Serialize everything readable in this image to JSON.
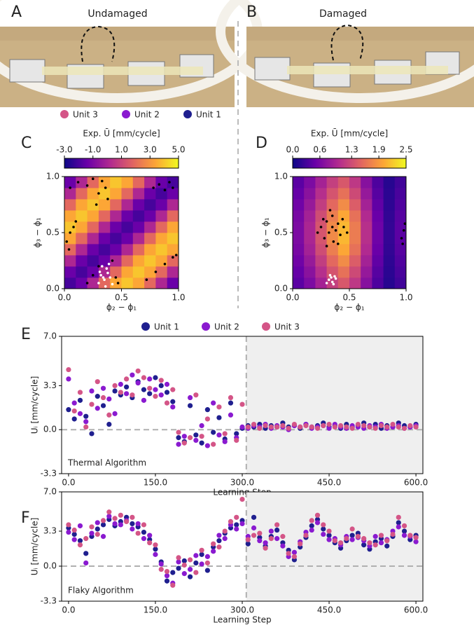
{
  "photos": [
    {
      "label": "A",
      "title": "Undamaged"
    },
    {
      "label": "B",
      "title": "Damaged"
    }
  ],
  "unit_legend": [
    {
      "name": "Unit 3",
      "color": "#d45587"
    },
    {
      "name": "Unit 2",
      "color": "#8a1ad0"
    },
    {
      "name": "Unit 1",
      "color": "#1f1f8f"
    }
  ],
  "chart_data": [
    {
      "type": "heatmap",
      "panel": "C",
      "colorbar_label": "Exp. Ū [mm/cycle]",
      "colormap": "plasma",
      "clim": [
        -3,
        5
      ],
      "cticks": [
        {
          "value": -3,
          "label": "-3.0"
        },
        {
          "value": -1,
          "label": "-1.0"
        },
        {
          "value": 1,
          "label": "1.0"
        },
        {
          "value": 3,
          "label": "3.0"
        },
        {
          "value": 5,
          "label": "5.0"
        }
      ],
      "x_label": "ϕ₂ − ϕ₁",
      "y_label": "ϕ₃ − ϕ₁",
      "xlim": [
        0,
        1
      ],
      "ylim": [
        0,
        1
      ],
      "xticks": [
        {
          "value": 0,
          "label": "0.0"
        },
        {
          "value": 0.5,
          "label": "0.5"
        },
        {
          "value": 1,
          "label": "1.0"
        }
      ],
      "yticks": [
        {
          "value": 0,
          "label": "0.0"
        },
        {
          "value": 0.5,
          "label": "0.5"
        },
        {
          "value": 1,
          "label": "1.0"
        }
      ],
      "z": [
        [
          -2.0,
          -1.4,
          0.1,
          1.9,
          3.4,
          4.0,
          3.4,
          1.9,
          0.1,
          -1.4
        ],
        [
          -1.4,
          -2.0,
          -1.4,
          0.1,
          1.9,
          3.4,
          4.0,
          3.4,
          1.9,
          0.1
        ],
        [
          0.1,
          -1.4,
          -2.0,
          -1.4,
          0.1,
          1.9,
          3.4,
          4.0,
          3.4,
          1.9
        ],
        [
          1.9,
          0.1,
          -1.4,
          -2.0,
          -1.4,
          0.1,
          1.9,
          3.4,
          4.0,
          3.4
        ],
        [
          3.4,
          1.9,
          0.1,
          -1.4,
          -2.0,
          -1.4,
          0.1,
          1.9,
          3.4,
          4.0
        ],
        [
          4.0,
          3.4,
          1.9,
          0.1,
          -1.4,
          -2.0,
          -1.4,
          0.1,
          1.9,
          3.4
        ],
        [
          3.4,
          4.0,
          3.4,
          1.9,
          0.1,
          -1.4,
          -2.0,
          -1.4,
          0.1,
          1.9
        ],
        [
          1.9,
          3.4,
          4.0,
          3.4,
          1.9,
          0.1,
          -1.4,
          -2.0,
          -1.4,
          0.1
        ],
        [
          0.1,
          1.9,
          3.4,
          4.0,
          3.4,
          1.9,
          0.1,
          -1.4,
          -2.0,
          -1.4
        ],
        [
          -1.4,
          0.1,
          1.9,
          3.4,
          4.0,
          3.4,
          1.9,
          0.1,
          -1.4,
          -2.0
        ]
      ],
      "points": [
        {
          "color": "#000000",
          "x": [
            0.05,
            0.12,
            0.2,
            0.25,
            0.3,
            0.33,
            0.36,
            0.38,
            0.28,
            0.02,
            0.05,
            0.08,
            0.1,
            0.04,
            0.78,
            0.83,
            0.88,
            0.92,
            0.95,
            0.72,
            0.8,
            0.88,
            0.95,
            0.98,
            0.25,
            0.3,
            0.42,
            0.45,
            0.47,
            0.2
          ],
          "y": [
            0.9,
            0.95,
            0.92,
            0.98,
            0.85,
            0.96,
            0.9,
            0.8,
            0.75,
            0.42,
            0.5,
            0.55,
            0.6,
            0.35,
            0.9,
            0.93,
            0.88,
            0.95,
            0.9,
            0.08,
            0.15,
            0.22,
            0.28,
            0.3,
            0.12,
            0.2,
            0.25,
            0.1,
            0.05,
            0.05
          ]
        },
        {
          "color": "#ffffff",
          "x": [
            0.3,
            0.32,
            0.35,
            0.37,
            0.4,
            0.42,
            0.33,
            0.36,
            0.38,
            0.31,
            0.39,
            0.34
          ],
          "y": [
            0.05,
            0.12,
            0.08,
            0.18,
            0.1,
            0.04,
            0.2,
            0.02,
            0.14,
            0.15,
            0.22,
            0.1
          ]
        }
      ]
    },
    {
      "type": "heatmap",
      "panel": "D",
      "colorbar_label": "Exp. Ū [mm/cycle]",
      "colormap": "plasma",
      "clim": [
        0,
        2.5
      ],
      "cticks": [
        {
          "value": 0,
          "label": "0.0"
        },
        {
          "value": 0.6,
          "label": "0.6"
        },
        {
          "value": 1.3,
          "label": "1.3"
        },
        {
          "value": 1.9,
          "label": "1.9"
        },
        {
          "value": 2.5,
          "label": "2.5"
        }
      ],
      "x_label": "ϕ₂ − ϕ₁",
      "y_label": "ϕ₃ − ϕ₁",
      "xlim": [
        0,
        1
      ],
      "ylim": [
        0,
        1
      ],
      "xticks": [
        {
          "value": 0,
          "label": "0.0"
        },
        {
          "value": 0.5,
          "label": "0.5"
        },
        {
          "value": 1,
          "label": "1.0"
        }
      ],
      "yticks": [
        {
          "value": 0,
          "label": "0.0"
        },
        {
          "value": 0.5,
          "label": "0.5"
        },
        {
          "value": 1,
          "label": "1.0"
        }
      ],
      "z": [
        [
          0.42,
          0.63,
          0.91,
          1.19,
          1.4,
          1.12,
          0.7,
          0.35,
          0.14,
          0.28
        ],
        [
          0.48,
          0.72,
          1.04,
          1.36,
          1.6,
          1.28,
          0.8,
          0.4,
          0.16,
          0.32
        ],
        [
          0.54,
          0.81,
          1.17,
          1.53,
          1.8,
          1.44,
          0.9,
          0.45,
          0.18,
          0.36
        ],
        [
          0.6,
          0.9,
          1.3,
          1.7,
          2.0,
          1.6,
          1.0,
          0.5,
          0.2,
          0.4
        ],
        [
          0.63,
          0.95,
          1.37,
          1.79,
          2.1,
          1.68,
          1.05,
          0.53,
          0.21,
          0.42
        ],
        [
          0.63,
          0.95,
          1.37,
          1.79,
          2.1,
          1.68,
          1.05,
          0.53,
          0.21,
          0.42
        ],
        [
          0.6,
          0.9,
          1.3,
          1.7,
          2.0,
          1.6,
          1.0,
          0.5,
          0.2,
          0.4
        ],
        [
          0.54,
          0.81,
          1.17,
          1.53,
          1.8,
          1.44,
          0.9,
          0.45,
          0.18,
          0.36
        ],
        [
          0.48,
          0.72,
          1.04,
          1.36,
          1.6,
          1.28,
          0.8,
          0.4,
          0.16,
          0.32
        ],
        [
          0.42,
          0.63,
          0.91,
          1.19,
          1.4,
          1.12,
          0.7,
          0.35,
          0.14,
          0.28
        ]
      ],
      "points": [
        {
          "color": "#000000",
          "x": [
            0.25,
            0.28,
            0.3,
            0.32,
            0.35,
            0.38,
            0.4,
            0.42,
            0.45,
            0.3,
            0.33,
            0.36,
            0.27,
            0.4,
            0.22,
            0.35,
            0.44,
            0.48,
            0.96,
            0.98,
            0.97,
            0.99
          ],
          "y": [
            0.55,
            0.45,
            0.6,
            0.5,
            0.65,
            0.52,
            0.58,
            0.48,
            0.55,
            0.38,
            0.7,
            0.42,
            0.62,
            0.4,
            0.5,
            0.55,
            0.62,
            0.5,
            0.45,
            0.52,
            0.4,
            0.58
          ]
        },
        {
          "color": "#ffffff",
          "x": [
            0.3,
            0.32,
            0.34,
            0.36,
            0.38,
            0.33,
            0.35,
            0.37
          ],
          "y": [
            0.05,
            0.08,
            0.1,
            0.04,
            0.09,
            0.12,
            0.06,
            0.11
          ]
        }
      ]
    },
    {
      "type": "scatter",
      "panel": "E",
      "annotation": "Thermal Algorithm",
      "x_label": "Learning Step",
      "y_label": "Uᵢ [mm/cycle]",
      "legend": "top",
      "vline": 307,
      "hline": 0,
      "shade_after_vline": true,
      "xlim": [
        -12,
        612
      ],
      "ylim": [
        -3.3,
        7
      ],
      "xticks": [
        {
          "value": 0,
          "label": "0.0"
        },
        {
          "value": 150,
          "label": "150.0"
        },
        {
          "value": 300,
          "label": "300.0"
        },
        {
          "value": 450,
          "label": "450.0"
        },
        {
          "value": 600,
          "label": "600.0"
        }
      ],
      "yticks": [
        {
          "value": -3.3,
          "label": "-3.3"
        },
        {
          "value": 0,
          "label": "0.0"
        },
        {
          "value": 3.3,
          "label": "3.3"
        },
        {
          "value": 7,
          "label": "7.0"
        }
      ],
      "x": [
        0,
        10,
        20,
        30,
        40,
        50,
        60,
        70,
        80,
        90,
        100,
        110,
        120,
        130,
        140,
        150,
        160,
        170,
        180,
        190,
        200,
        210,
        220,
        230,
        240,
        250,
        260,
        270,
        280,
        290,
        300,
        310,
        320,
        330,
        340,
        350,
        360,
        370,
        380,
        390,
        400,
        410,
        420,
        430,
        440,
        450,
        460,
        470,
        480,
        490,
        500,
        510,
        520,
        530,
        540,
        550,
        560,
        570,
        580,
        590,
        600
      ],
      "series": [
        {
          "name": "Unit 1",
          "color": "#1f1f8f",
          "values": [
            1.5,
            0.8,
            2.2,
            1.0,
            -0.3,
            2.5,
            1.8,
            0.4,
            2.9,
            2.6,
            3.2,
            2.4,
            3.6,
            3.0,
            2.7,
            3.9,
            3.3,
            2.8,
            2.1,
            -0.6,
            -0.9,
            1.8,
            -0.4,
            -1.0,
            1.5,
            -0.2,
            0.9,
            -0.7,
            2.0,
            -0.3,
            0.1,
            0.3,
            0.2,
            0.4,
            0.1,
            0.3,
            0.2,
            0.5,
            0.2,
            0.3,
            0.1,
            0.4,
            0.2,
            0.3,
            0.5,
            0.2,
            0.3,
            0.1,
            0.4,
            0.2,
            0.3,
            0.5,
            0.2,
            0.4,
            0.1,
            0.3,
            0.2,
            0.5,
            0.3,
            0.2,
            0.4
          ]
        },
        {
          "name": "Unit 2",
          "color": "#8a1ad0",
          "values": [
            3.8,
            2.0,
            1.2,
            0.6,
            2.9,
            1.6,
            3.1,
            2.3,
            1.2,
            3.4,
            2.7,
            4.1,
            3.5,
            2.2,
            3.8,
            3.0,
            2.6,
            3.4,
            1.7,
            -1.1,
            -0.5,
            2.4,
            -0.8,
            0.3,
            -1.2,
            2.0,
            -0.4,
            -0.9,
            1.1,
            -0.6,
            0.2,
            0.1,
            0.3,
            0.2,
            0.4,
            0.1,
            0.3,
            0.2,
            0.0,
            0.3,
            0.2,
            0.4,
            0.1,
            0.2,
            0.3,
            0.1,
            0.4,
            0.2,
            0.1,
            0.3,
            0.2,
            0.1,
            0.3,
            0.2,
            0.4,
            0.1,
            0.2,
            0.3,
            0.1,
            0.2,
            0.3
          ]
        },
        {
          "name": "Unit 3",
          "color": "#d45587",
          "values": [
            4.5,
            1.4,
            2.8,
            0.2,
            1.9,
            3.6,
            2.4,
            1.1,
            3.3,
            2.8,
            3.8,
            2.6,
            4.4,
            3.9,
            3.1,
            2.5,
            3.7,
            2.0,
            3.0,
            -0.2,
            -1.0,
            -0.6,
            2.6,
            -0.5,
            0.8,
            -1.1,
            1.7,
            -0.3,
            2.4,
            -0.8,
            1.9,
            0.2,
            0.4,
            0.1,
            0.3,
            0.2,
            0.2,
            0.3,
            0.1,
            0.4,
            0.2,
            0.3,
            0.2,
            0.1,
            0.3,
            0.4,
            0.2,
            0.3,
            0.2,
            0.1,
            0.4,
            0.3,
            0.2,
            0.1,
            0.3,
            0.2,
            0.4,
            0.2,
            0.1,
            0.3,
            0.2
          ]
        }
      ]
    },
    {
      "type": "scatter",
      "panel": "F",
      "annotation": "Flaky Algorithm",
      "x_label": "Learning Step",
      "y_label": "Uᵢ [mm/cycle]",
      "vline": 307,
      "hline": 0,
      "shade_after_vline": true,
      "xlim": [
        -12,
        612
      ],
      "ylim": [
        -3.3,
        7
      ],
      "xticks": [
        {
          "value": 0,
          "label": "0.0"
        },
        {
          "value": 150,
          "label": "150.0"
        },
        {
          "value": 300,
          "label": "300.0"
        },
        {
          "value": 450,
          "label": "450.0"
        },
        {
          "value": 600,
          "label": "600.0"
        }
      ],
      "yticks": [
        {
          "value": -3.3,
          "label": "-3.3"
        },
        {
          "value": 0,
          "label": "0.0"
        },
        {
          "value": 3.3,
          "label": "3.3"
        },
        {
          "value": 7,
          "label": "7.0"
        }
      ],
      "x": [
        0,
        10,
        20,
        30,
        40,
        50,
        60,
        70,
        80,
        90,
        100,
        110,
        120,
        130,
        140,
        150,
        160,
        170,
        180,
        190,
        200,
        210,
        220,
        230,
        240,
        250,
        260,
        270,
        280,
        290,
        300,
        310,
        320,
        330,
        340,
        350,
        360,
        370,
        380,
        390,
        400,
        410,
        420,
        430,
        440,
        450,
        460,
        470,
        480,
        490,
        500,
        510,
        520,
        530,
        540,
        550,
        560,
        570,
        580,
        590,
        600
      ],
      "series": [
        {
          "name": "Unit 1",
          "color": "#1f1f8f",
          "values": [
            3.6,
            3.0,
            2.4,
            1.2,
            2.8,
            3.5,
            3.9,
            4.4,
            3.8,
            4.2,
            4.6,
            4.0,
            3.7,
            3.2,
            2.5,
            1.6,
            0.4,
            -1.4,
            -0.6,
            -0.2,
            0.5,
            -1.0,
            0.3,
            1.1,
            -0.4,
            1.8,
            2.4,
            3.1,
            3.6,
            3.9,
            4.3,
            2.1,
            4.6,
            2.7,
            1.9,
            2.8,
            3.4,
            2.2,
            1.5,
            0.6,
            1.8,
            2.7,
            3.8,
            4.4,
            3.5,
            2.9,
            2.2,
            1.7,
            2.4,
            2.9,
            3.1,
            2.0,
            1.6,
            2.3,
            2.6,
            1.9,
            2.8,
            4.1,
            3.3,
            2.5,
            2.9
          ]
        },
        {
          "name": "Unit 2",
          "color": "#8a1ad0",
          "values": [
            3.2,
            2.5,
            3.8,
            0.3,
            3.1,
            4.1,
            2.8,
            4.7,
            4.0,
            3.9,
            4.3,
            3.5,
            4.0,
            2.6,
            2.9,
            1.1,
            0.2,
            -0.9,
            -1.6,
            0.4,
            -0.7,
            -0.3,
            1.0,
            0.2,
            0.9,
            1.4,
            2.9,
            2.6,
            3.9,
            3.5,
            4.0,
            2.8,
            3.6,
            2.4,
            2.2,
            3.3,
            2.6,
            1.9,
            0.9,
            1.3,
            2.3,
            3.2,
            3.4,
            4.1,
            3.0,
            2.5,
            2.6,
            2.0,
            2.8,
            2.5,
            2.7,
            2.4,
            1.9,
            2.8,
            2.2,
            2.5,
            3.3,
            3.7,
            2.9,
            2.8,
            2.3
          ]
        },
        {
          "name": "Unit 3",
          "color": "#d45587",
          "values": [
            3.9,
            3.4,
            2.0,
            2.6,
            3.7,
            3.0,
            4.3,
            5.1,
            4.5,
            4.8,
            4.2,
            4.6,
            3.1,
            3.9,
            2.2,
            2.0,
            -0.3,
            -0.5,
            -1.8,
            0.8,
            0.1,
            0.6,
            -0.6,
            1.5,
            0.3,
            2.1,
            1.8,
            3.3,
            4.2,
            4.6,
            6.3,
            2.5,
            2.9,
            3.1,
            1.7,
            2.6,
            3.9,
            2.8,
            1.2,
            0.9,
            2.1,
            2.9,
            4.3,
            4.8,
            3.9,
            3.3,
            2.4,
            2.2,
            2.6,
            3.5,
            2.8,
            2.6,
            2.2,
            2.0,
            2.9,
            2.4,
            3.0,
            4.6,
            3.8,
            2.9,
            2.7
          ]
        }
      ]
    }
  ]
}
